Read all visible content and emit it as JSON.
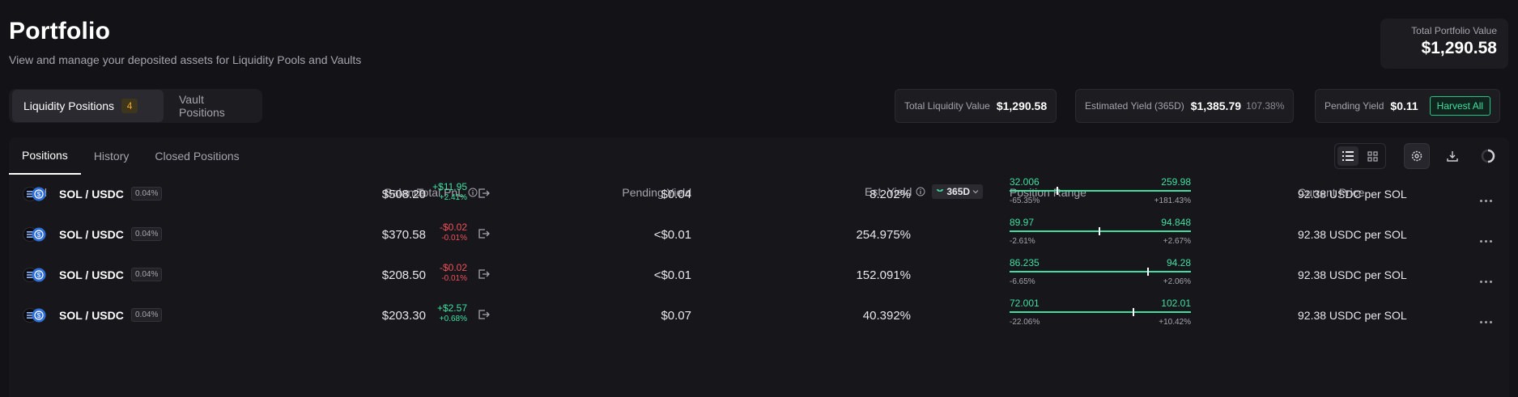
{
  "header": {
    "title": "Portfolio",
    "subtitle": "View and manage your deposited assets for Liquidity Pools and Vaults",
    "total_portfolio_label": "Total Portfolio Value",
    "total_portfolio_value": "$1,290.58"
  },
  "top_tabs": {
    "liquidity_label": "Liquidity Positions",
    "liquidity_count": "4",
    "vault_label": "Vault Positions"
  },
  "stats": {
    "total_liquidity_label": "Total Liquidity Value",
    "total_liquidity_value": "$1,290.58",
    "est_yield_label": "Estimated Yield (365D)",
    "est_yield_value": "$1,385.79",
    "est_yield_pct": "107.38%",
    "pending_yield_label": "Pending Yield",
    "pending_yield_value": "$0.11",
    "harvest_label": "Harvest All"
  },
  "sub_tabs": [
    "Positions",
    "History",
    "Closed Positions"
  ],
  "columns": {
    "pool": "Pool",
    "balance": "Balance",
    "total_pnl": "Total PnL",
    "pending_yield": "Pending Yield",
    "est_yield": "Est. Yield",
    "period": "365D",
    "position_range": "Position Range",
    "current_price": "Current Price"
  },
  "icons": [
    "list-view-icon",
    "grid-view-icon",
    "settings-icon",
    "download-icon",
    "loading-spinner-icon",
    "info-icon",
    "exit-position-icon",
    "more-options-icon"
  ],
  "colors": {
    "positive": "#3ee0a1",
    "negative": "#f0505a",
    "badge": "#f5a623"
  },
  "rows": [
    {
      "pair": "SOL / USDC",
      "fee": "0.04%",
      "balance": "$508.20",
      "pnl": "+$11.95",
      "pnl_pct": "+2.41%",
      "pnl_sign": "pos",
      "pending": "$0.04",
      "est_yield": "8.202%",
      "range_low": "32.006",
      "range_high": "259.98",
      "range_low_pct": "-65.35%",
      "range_high_pct": "+181.43%",
      "marker": 0.26,
      "price": "92.38 USDC per SOL"
    },
    {
      "pair": "SOL / USDC",
      "fee": "0.04%",
      "balance": "$370.58",
      "pnl": "-$0.02",
      "pnl_pct": "-0.01%",
      "pnl_sign": "neg",
      "pending": "<$0.01",
      "est_yield": "254.975%",
      "range_low": "89.97",
      "range_high": "94.848",
      "range_low_pct": "-2.61%",
      "range_high_pct": "+2.67%",
      "marker": 0.49,
      "price": "92.38 USDC per SOL"
    },
    {
      "pair": "SOL / USDC",
      "fee": "0.04%",
      "balance": "$208.50",
      "pnl": "-$0.02",
      "pnl_pct": "-0.01%",
      "pnl_sign": "neg",
      "pending": "<$0.01",
      "est_yield": "152.091%",
      "range_low": "86.235",
      "range_high": "94.28",
      "range_low_pct": "-6.65%",
      "range_high_pct": "+2.06%",
      "marker": 0.76,
      "price": "92.38 USDC per SOL"
    },
    {
      "pair": "SOL / USDC",
      "fee": "0.04%",
      "balance": "$203.30",
      "pnl": "+$2.57",
      "pnl_pct": "+0.68%",
      "pnl_sign": "pos",
      "pending": "$0.07",
      "est_yield": "40.392%",
      "range_low": "72.001",
      "range_high": "102.01",
      "range_low_pct": "-22.06%",
      "range_high_pct": "+10.42%",
      "marker": 0.68,
      "price": "92.38 USDC per SOL"
    }
  ]
}
